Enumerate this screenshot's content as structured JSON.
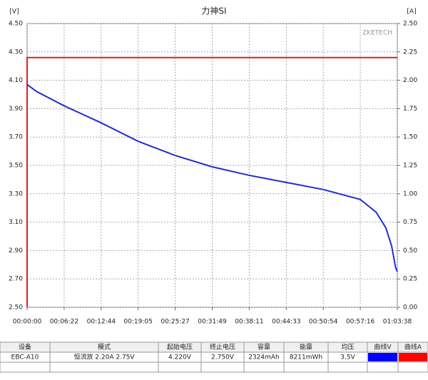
{
  "chart_data": {
    "type": "line",
    "title": "力神SI",
    "y_unit": "[V]",
    "y2_unit": "[A]",
    "watermark": "ZKETECH",
    "xlim": [
      0,
      3818
    ],
    "xticks": [
      {
        "value": 0,
        "label": "00:00:00"
      },
      {
        "value": 382,
        "label": "00:06:22"
      },
      {
        "value": 764,
        "label": "00:12:44"
      },
      {
        "value": 1145,
        "label": "00:19:05"
      },
      {
        "value": 1527,
        "label": "00:25:27"
      },
      {
        "value": 1909,
        "label": "00:31:49"
      },
      {
        "value": 2291,
        "label": "00:38:11"
      },
      {
        "value": 2673,
        "label": "00:44:33"
      },
      {
        "value": 3054,
        "label": "00:50:54"
      },
      {
        "value": 3436,
        "label": "00:57:16"
      },
      {
        "value": 3818,
        "label": "01:03:38"
      }
    ],
    "ylim": [
      2.5,
      4.5
    ],
    "yticks": [
      {
        "value": 2.5,
        "label": "2.50"
      },
      {
        "value": 2.7,
        "label": "2.70"
      },
      {
        "value": 2.9,
        "label": "2.90"
      },
      {
        "value": 3.1,
        "label": "3.10"
      },
      {
        "value": 3.3,
        "label": "3.30"
      },
      {
        "value": 3.5,
        "label": "3.50"
      },
      {
        "value": 3.7,
        "label": "3.70"
      },
      {
        "value": 3.9,
        "label": "3.90"
      },
      {
        "value": 4.1,
        "label": "4.10"
      },
      {
        "value": 4.3,
        "label": "4.30"
      },
      {
        "value": 4.5,
        "label": "4.50"
      }
    ],
    "y2lim": [
      0,
      2.5
    ],
    "y2ticks": [
      {
        "value": 0,
        "label": "0.00"
      },
      {
        "value": 0.25,
        "label": "0.25"
      },
      {
        "value": 0.5,
        "label": "0.50"
      },
      {
        "value": 0.75,
        "label": "0.75"
      },
      {
        "value": 1,
        "label": "1.00"
      },
      {
        "value": 1.25,
        "label": "1.25"
      },
      {
        "value": 1.5,
        "label": "1.50"
      },
      {
        "value": 1.75,
        "label": "1.75"
      },
      {
        "value": 2,
        "label": "2.00"
      },
      {
        "value": 2.25,
        "label": "2.25"
      },
      {
        "value": 2.5,
        "label": "2.50"
      }
    ],
    "grid": true,
    "series": [
      {
        "name": "V",
        "color": "#1f2fd0",
        "x": [
          0,
          100,
          382,
          764,
          1145,
          1527,
          1909,
          2291,
          2673,
          3054,
          3436,
          3600,
          3700,
          3760,
          3800,
          3818
        ],
        "values": [
          4.07,
          4.02,
          3.92,
          3.8,
          3.67,
          3.57,
          3.49,
          3.43,
          3.38,
          3.33,
          3.26,
          3.17,
          3.06,
          2.93,
          2.78,
          2.75
        ]
      },
      {
        "name": "A",
        "color": "#e02020",
        "axis": "y2",
        "x": [
          0,
          0,
          3818
        ],
        "values": [
          0,
          2.2,
          2.2
        ]
      }
    ]
  },
  "table": {
    "headers": [
      "设备",
      "模式",
      "起始电压",
      "终止电压",
      "容量",
      "能量",
      "均压",
      "曲线V",
      "曲线A"
    ],
    "rows": [
      [
        "EBC-A10",
        "恒流放  2.20A  2.75V",
        "4.220V",
        "2.750V",
        "2324mAh",
        "8211mWh",
        "3.5V"
      ]
    ],
    "curve_colors": [
      "#0000ff",
      "#ff0000"
    ]
  }
}
